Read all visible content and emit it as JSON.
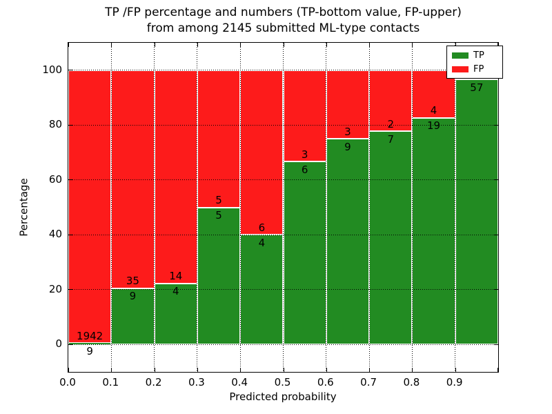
{
  "title": {
    "line1": "TP /FP percentage and numbers (TP-bottom value, FP-upper)",
    "line2": "from among 2145 submitted ML-type contacts"
  },
  "axes": {
    "ylabel": "Percentage",
    "xlabel": "Predicted probability",
    "y_ticks": [
      0,
      20,
      40,
      60,
      80,
      100
    ],
    "x_tick_labels": [
      "0.0",
      "0.1",
      "0.2",
      "0.3",
      "0.4",
      "0.5",
      "0.6",
      "0.7",
      "0.8",
      "0.9"
    ],
    "xlim": [
      0.0,
      1.0
    ],
    "ylim": [
      -10,
      110
    ],
    "grid_style": "dotted"
  },
  "legend": {
    "position": "upper right",
    "entries": [
      {
        "label": "TP",
        "color": "#228b22"
      },
      {
        "label": "FP",
        "color": "#fd1b1b"
      }
    ]
  },
  "chart_data": {
    "type": "bar",
    "stacked": true,
    "orientation": "vertical",
    "x_bins": [
      [
        0.0,
        0.1
      ],
      [
        0.1,
        0.2
      ],
      [
        0.2,
        0.3
      ],
      [
        0.3,
        0.4
      ],
      [
        0.4,
        0.5
      ],
      [
        0.5,
        0.6
      ],
      [
        0.6,
        0.7
      ],
      [
        0.7,
        0.8
      ],
      [
        0.8,
        0.9
      ],
      [
        0.9,
        1.0
      ]
    ],
    "series": [
      {
        "name": "TP",
        "color": "#228b22",
        "counts": [
          9,
          9,
          4,
          5,
          4,
          6,
          9,
          7,
          19,
          57
        ],
        "percent": [
          0.46,
          20.45,
          22.22,
          50.0,
          40.0,
          66.67,
          75.0,
          77.78,
          82.61,
          96.61
        ]
      },
      {
        "name": "FP",
        "color": "#fd1b1b",
        "counts": [
          1942,
          35,
          14,
          5,
          6,
          3,
          3,
          2,
          4,
          null
        ],
        "percent": [
          99.54,
          79.55,
          77.78,
          50.0,
          60.0,
          33.33,
          25.0,
          22.22,
          17.39,
          3.39
        ]
      }
    ],
    "tp_value_labels": [
      "9",
      "9",
      "4",
      "5",
      "4",
      "6",
      "9",
      "7",
      "19",
      "57"
    ],
    "fp_value_labels": [
      "1942",
      "35",
      "14",
      "5",
      "6",
      "3",
      "3",
      "2",
      "4",
      ""
    ]
  }
}
